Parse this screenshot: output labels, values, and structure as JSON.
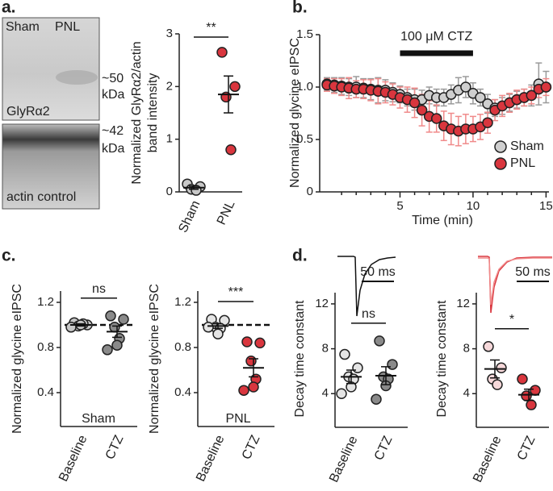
{
  "panel_labels": [
    "a.",
    "b.",
    "c.",
    "d."
  ],
  "blot": {
    "lanes": [
      "Sham",
      "PNL"
    ],
    "marker_top": "~50",
    "unit_top": "kDa",
    "label_top": "GlyRα2",
    "marker_bottom": "~42",
    "unit_bottom": "kDa",
    "label_bottom": "actin control"
  },
  "chart_data": [
    {
      "type": "dotplot",
      "ylabel": [
        "Normalized GlyRα2/actin",
        "band intensity"
      ],
      "categories": [
        "Sham",
        "PNL"
      ],
      "ylim": [
        0,
        3
      ],
      "yticks": [
        0,
        1,
        2,
        3
      ],
      "annotation": "**",
      "groups": [
        {
          "values": [
            0.15,
            0.1,
            0.05,
            0.03
          ],
          "mean": 0.08,
          "sem": 0.03,
          "color": "#c8c8c8"
        },
        {
          "values": [
            2.65,
            2.0,
            1.8,
            0.8
          ],
          "mean": 1.85,
          "sem": 0.35,
          "color": "#d9363e"
        }
      ]
    },
    {
      "type": "line",
      "title": "100 μM CTZ",
      "bar_span": [
        5,
        10
      ],
      "xlabel": "Time (min)",
      "ylabel": "Normalized glycine eIPSC",
      "xlim": [
        -0.5,
        15.2
      ],
      "xticks": [
        5,
        10,
        15
      ],
      "minor_xticks": [
        1,
        2,
        3,
        4,
        6,
        7,
        8,
        9,
        11,
        12,
        13,
        14
      ],
      "ylim": [
        0,
        1.5
      ],
      "yticks": [
        0,
        0.5,
        {
          "value": 1,
          "label": "1.0"
        },
        1.5
      ],
      "legend": "lower right",
      "x": [
        0,
        0.5,
        1,
        1.5,
        2,
        2.5,
        3,
        3.5,
        4,
        4.5,
        5,
        5.5,
        6,
        6.5,
        7,
        7.5,
        8,
        8.5,
        9,
        9.5,
        10,
        10.5,
        11,
        11.5,
        12,
        12.5,
        13,
        13.5,
        14,
        14.5,
        15
      ],
      "series": [
        {
          "name": "Sham",
          "color": "#cfcfcf",
          "error_color": "#9a9a9a",
          "values": [
            1.03,
            1.02,
            1.01,
            1.0,
            1.0,
            0.99,
            0.98,
            0.97,
            0.97,
            0.95,
            0.93,
            0.9,
            0.88,
            0.88,
            0.92,
            0.9,
            0.9,
            0.93,
            0.97,
            1.0,
            0.94,
            0.9,
            0.84,
            0.8,
            0.82,
            0.85,
            0.88,
            0.9,
            0.92,
            1.03,
            1.0
          ],
          "errors": [
            0.06,
            0.07,
            0.08,
            0.08,
            0.1,
            0.09,
            0.1,
            0.12,
            0.1,
            0.09,
            0.08,
            0.08,
            0.1,
            0.09,
            0.08,
            0.08,
            0.08,
            0.09,
            0.12,
            0.1,
            0.1,
            0.08,
            0.09,
            0.08,
            0.08,
            0.08,
            0.08,
            0.08,
            0.1,
            0.2,
            0.15
          ]
        },
        {
          "name": "PNL",
          "color": "#d9363e",
          "error_color": "#f08a8a",
          "values": [
            1.02,
            1.01,
            1.0,
            0.99,
            0.98,
            0.98,
            0.97,
            0.96,
            0.95,
            0.93,
            0.9,
            0.88,
            0.85,
            0.78,
            0.72,
            0.7,
            0.63,
            0.6,
            0.58,
            0.6,
            0.6,
            0.62,
            0.66,
            0.78,
            0.82,
            0.85,
            0.88,
            0.9,
            0.92,
            0.98,
            1.0
          ],
          "errors": [
            0.06,
            0.07,
            0.08,
            0.1,
            0.08,
            0.09,
            0.1,
            0.12,
            0.1,
            0.1,
            0.1,
            0.12,
            0.14,
            0.15,
            0.15,
            0.13,
            0.14,
            0.15,
            0.14,
            0.14,
            0.12,
            0.12,
            0.1,
            0.1,
            0.1,
            0.09,
            0.09,
            0.08,
            0.08,
            0.08,
            0.08
          ]
        }
      ]
    },
    {
      "type": "dotplot",
      "ylabel": [
        "Normalized glycine eIPSC"
      ],
      "categories": [
        "Baseline",
        "CTZ"
      ],
      "label": "Sham",
      "ylim": [
        0.1,
        1.3
      ],
      "yticks": [
        0.4,
        0.8,
        1.2
      ],
      "reference_line": 1,
      "annotation": "ns",
      "groups": [
        {
          "values": [
            1.02,
            1.0,
            0.99,
            1.01,
            1.0,
            0.98
          ],
          "mean": 1.0,
          "sem": 0.01,
          "color": "#c8c8c8"
        },
        {
          "values": [
            1.08,
            1.05,
            0.98,
            0.88,
            0.82,
            0.78
          ],
          "mean": 0.94,
          "sem": 0.05,
          "color": "#8a8a8a"
        }
      ]
    },
    {
      "type": "dotplot",
      "ylabel": [
        "Normalized glycine eIPSC"
      ],
      "categories": [
        "Baseline",
        "CTZ"
      ],
      "label": "PNL",
      "ylim": [
        0.1,
        1.3
      ],
      "yticks": [
        0.4,
        0.8,
        1.2
      ],
      "reference_line": 1,
      "annotation": "***",
      "groups": [
        {
          "values": [
            1.05,
            1.04,
            0.98,
            0.97,
            0.92,
            0.98
          ],
          "mean": 0.99,
          "sem": 0.02,
          "color": "#e4e4e4"
        },
        {
          "values": [
            0.85,
            0.84,
            0.68,
            0.52,
            0.45,
            0.42
          ],
          "mean": 0.62,
          "sem": 0.08,
          "color": "#d9363e"
        }
      ]
    },
    {
      "type": "dotplot",
      "ylabel": [
        "Decay time constant"
      ],
      "categories": [
        "Baseline",
        "CTZ"
      ],
      "scale_label": "50 ms",
      "ylim": [
        1,
        13
      ],
      "yticks": [
        4,
        8,
        12
      ],
      "annotation": "ns",
      "groups": [
        {
          "values": [
            7.5,
            6.3,
            5.5,
            5.3,
            4.6,
            4.0
          ],
          "mean": 5.5,
          "sem": 0.6,
          "color": "#e4e4e4"
        },
        {
          "values": [
            8.7,
            6.6,
            5.5,
            5.3,
            4.7,
            3.5
          ],
          "mean": 5.6,
          "sem": 0.8,
          "color": "#8a8a8a"
        }
      ]
    },
    {
      "type": "dotplot",
      "ylabel": [
        "Decay time constant"
      ],
      "categories": [
        "Baseline",
        "CTZ"
      ],
      "scale_label": "50 ms",
      "ylim": [
        1,
        13
      ],
      "yticks": [
        4,
        8,
        12
      ],
      "annotation": "*",
      "groups": [
        {
          "values": [
            8.2,
            6.3,
            5.3,
            4.8
          ],
          "mean": 6.2,
          "sem": 0.8,
          "color": "#f6d8da"
        },
        {
          "values": [
            5.3,
            4.3,
            3.8,
            3.0
          ],
          "mean": 3.9,
          "sem": 0.5,
          "color": "#d9363e"
        }
      ]
    }
  ]
}
